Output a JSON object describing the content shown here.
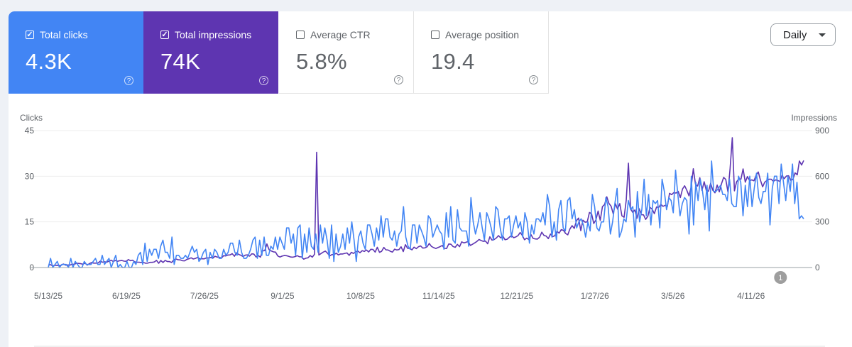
{
  "metrics": [
    {
      "label": "Total clicks",
      "value": "4.3K",
      "checked": true,
      "color": "#4285f4"
    },
    {
      "label": "Total impressions",
      "value": "74K",
      "checked": true,
      "color": "#5e35b1"
    },
    {
      "label": "Average CTR",
      "value": "5.8%",
      "checked": false
    },
    {
      "label": "Average position",
      "value": "19.4",
      "checked": false
    }
  ],
  "help_icon": "question-circle-icon",
  "granularity": {
    "selected": "Daily"
  },
  "annotation": {
    "label": "1",
    "date": "4/25/26"
  },
  "chart_data": {
    "type": "line",
    "title": "",
    "left_axis": {
      "label": "Clicks",
      "ylim": [
        0,
        45
      ],
      "ticks": [
        "0",
        "15",
        "30",
        "45"
      ]
    },
    "right_axis": {
      "label": "Impressions",
      "ylim": [
        0,
        900
      ],
      "ticks": [
        "0",
        "300",
        "600",
        "900"
      ]
    },
    "x_start": "5/13/25",
    "x_end": "5/6/26",
    "x_ticks": [
      "5/13/25",
      "6/19/25",
      "7/26/25",
      "9/1/25",
      "10/8/25",
      "11/14/25",
      "12/21/25",
      "1/27/26",
      "3/5/26",
      "4/11/26"
    ],
    "grid": true,
    "series": [
      {
        "name": "Total clicks",
        "axis": "left",
        "color": "#4285f4",
        "values": [
          0,
          3,
          0,
          1,
          2,
          0,
          1,
          1,
          1,
          0,
          3,
          0,
          2,
          1,
          0,
          0,
          2,
          1,
          1,
          1,
          2,
          3,
          1,
          1,
          4,
          1,
          2,
          3,
          0,
          2,
          4,
          0,
          1,
          0,
          0,
          2,
          0,
          0,
          2,
          1,
          4,
          5,
          1,
          8,
          2,
          6,
          4,
          6,
          6,
          3,
          7,
          9,
          5,
          5,
          3,
          10,
          1,
          4,
          4,
          3,
          3,
          4,
          3,
          5,
          7,
          5,
          6,
          2,
          3,
          5,
          6,
          1,
          5,
          3,
          6,
          5,
          3,
          3,
          6,
          4,
          5,
          8,
          8,
          5,
          4,
          9,
          5,
          3,
          3,
          4,
          6,
          9,
          10,
          3,
          9,
          4,
          10,
          4,
          4,
          7,
          6,
          10,
          6,
          10,
          8,
          6,
          13,
          13,
          8,
          11,
          4,
          13,
          14,
          3,
          11,
          5,
          13,
          7,
          6,
          11,
          5,
          14,
          8,
          13,
          9,
          3,
          14,
          2,
          11,
          5,
          7,
          11,
          6,
          13,
          8,
          15,
          9,
          2,
          10,
          12,
          8,
          6,
          14,
          14,
          11,
          7,
          13,
          9,
          17,
          10,
          16,
          16,
          10,
          9,
          12,
          7,
          11,
          12,
          20,
          10,
          7,
          6,
          14,
          14,
          8,
          14,
          12,
          10,
          7,
          17,
          16,
          10,
          12,
          14,
          12,
          11,
          6,
          18,
          10,
          20,
          9,
          8,
          19,
          13,
          12,
          12,
          12,
          7,
          23,
          15,
          11,
          14,
          18,
          13,
          9,
          18,
          16,
          13,
          9,
          20,
          19,
          13,
          9,
          16,
          16,
          17,
          10,
          14,
          17,
          13,
          15,
          10,
          18,
          15,
          8,
          14,
          11,
          16,
          16,
          15,
          18,
          14,
          24,
          20,
          10,
          15,
          9,
          19,
          22,
          13,
          12,
          22,
          23,
          16,
          19,
          13,
          15,
          16,
          14,
          10,
          15,
          12,
          24,
          20,
          13,
          12,
          15,
          15,
          23,
          20,
          11,
          15,
          21,
          26,
          10,
          12,
          16,
          15,
          22,
          19,
          20,
          10,
          25,
          15,
          19,
          29,
          17,
          24,
          14,
          22,
          21,
          22,
          13,
          29,
          25,
          19,
          23,
          22,
          18,
          32,
          24,
          17,
          21,
          23,
          22,
          11,
          30,
          14,
          28,
          22,
          29,
          25,
          19,
          27,
          12,
          35,
          25,
          25,
          26,
          27,
          24,
          24,
          22,
          29,
          21,
          20,
          20,
          30,
          28,
          17,
          27,
          20,
          30,
          20,
          26,
          31,
          23,
          21,
          25,
          25,
          31,
          14,
          26,
          30,
          30,
          21,
          34,
          28,
          22,
          30,
          25,
          34,
          21,
          28,
          16,
          17,
          16
        ]
      },
      {
        "name": "Total impressions",
        "axis": "right",
        "color": "#5e35b1",
        "values": [
          15,
          19,
          11,
          14,
          15,
          12,
          16,
          23,
          16,
          17,
          16,
          22,
          21,
          28,
          27,
          25,
          22,
          29,
          16,
          25,
          33,
          29,
          29,
          30,
          42,
          35,
          38,
          35,
          42,
          48,
          40,
          46,
          41,
          45,
          46,
          42,
          41,
          52,
          45,
          48,
          37,
          35,
          35,
          33,
          33,
          28,
          29,
          34,
          34,
          37,
          47,
          28,
          46,
          33,
          47,
          39,
          39,
          33,
          51,
          56,
          51,
          50,
          45,
          44,
          53,
          58,
          64,
          56,
          60,
          66,
          57,
          58,
          57,
          63,
          63,
          66,
          61,
          74,
          69,
          67,
          62,
          78,
          76,
          82,
          83,
          91,
          74,
          97,
          86,
          80,
          72,
          81,
          83,
          75,
          90,
          88,
          69,
          79,
          68,
          110,
          111,
          155,
          117,
          109,
          103,
          101,
          76,
          69,
          75,
          79,
          78,
          74,
          69,
          68,
          72,
          78,
          71,
          70,
          55,
          61,
          64,
          79,
          68,
          87,
          758,
          82,
          92,
          101,
          108,
          94,
          76,
          85,
          85,
          94,
          83,
          89,
          89,
          93,
          96,
          80,
          100,
          93,
          103,
          108,
          97,
          111,
          106,
          115,
          102,
          120,
          119,
          101,
          133,
          100,
          107,
          132,
          116,
          115,
          107,
          101,
          121,
          115,
          118,
          136,
          105,
          150,
          126,
          127,
          116,
          134,
          124,
          136,
          142,
          128,
          129,
          136,
          158,
          139,
          131,
          125,
          131,
          137,
          145,
          126,
          125,
          155,
          153,
          138,
          133,
          152,
          137,
          169,
          162,
          166,
          171,
          145,
          153,
          162,
          171,
          184,
          177,
          172,
          174,
          156,
          202,
          180,
          184,
          194,
          210,
          195,
          207,
          183,
          186,
          199,
          210,
          196,
          201,
          210,
          230,
          211,
          183,
          193,
          184,
          216,
          191,
          188,
          187,
          200,
          232,
          211,
          207,
          190,
          220,
          203,
          209,
          238,
          226,
          249,
          245,
          224,
          215,
          253,
          275,
          257,
          308,
          325,
          242,
          311,
          298,
          300,
          362,
          353,
          289,
          313,
          371,
          310,
          400,
          414,
          465,
          422,
          403,
          354,
          419,
          384,
          420,
          340,
          330,
          441,
          686,
          386,
          362,
          378,
          324,
          386,
          348,
          346,
          316,
          337,
          395,
          383,
          354,
          398,
          395,
          415,
          402,
          409,
          401,
          488,
          479,
          493,
          489,
          501,
          460,
          516,
          537,
          507,
          471,
          529,
          649,
          546,
          536,
          590,
          507,
          564,
          506,
          501,
          554,
          508,
          491,
          542,
          497,
          549,
          592,
          579,
          496,
          650,
          853,
          504,
          564,
          582,
          581,
          648,
          561,
          598,
          571,
          576,
          570,
          606,
          628,
          575,
          530,
          561,
          572,
          580,
          580,
          566,
          576,
          572,
          565,
          605,
          584,
          601,
          603,
          573,
          580,
          622,
          609,
          700,
          674,
          703
        ]
      }
    ]
  }
}
